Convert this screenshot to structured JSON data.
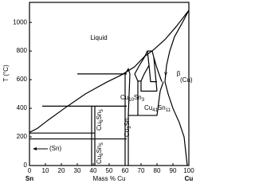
{
  "chart_data": {
    "type": "phase_diagram",
    "xlabel": "Mass % Cu",
    "ylabel": "T (°C)",
    "xlim": [
      0,
      100
    ],
    "ylim": [
      0,
      1140
    ],
    "xticks": [
      0,
      10,
      20,
      30,
      40,
      50,
      60,
      70,
      80,
      90,
      100
    ],
    "yticks": [
      0,
      200,
      400,
      600,
      800,
      1000
    ],
    "end_labels": [
      "Sn",
      "Cu"
    ],
    "annotations": {
      "liquid": "Liquid",
      "gamma": "γ",
      "beta": "β",
      "cu_phase": "(Cu)",
      "sn_phase": "(Sn)",
      "cu10sn3": [
        "Cu",
        "10",
        "Sn",
        "3"
      ],
      "cu41sn11": [
        "Cu",
        "41",
        "Sn",
        "11"
      ],
      "cu6sn5_upper": [
        "Cu",
        "6",
        "Sn",
        "5"
      ],
      "cu6sn5_lower": [
        "Cu",
        "6",
        "Sn",
        "5"
      ],
      "cu3sn": [
        "Cu",
        "3",
        "Sn"
      ]
    }
  }
}
